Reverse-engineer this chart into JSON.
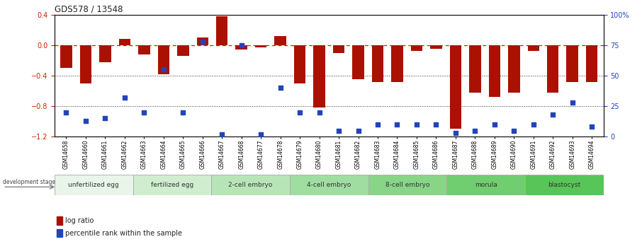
{
  "title": "GDS578 / 13548",
  "samples": [
    "GSM14658",
    "GSM14660",
    "GSM14661",
    "GSM14662",
    "GSM14663",
    "GSM14664",
    "GSM14665",
    "GSM14666",
    "GSM14667",
    "GSM14668",
    "GSM14677",
    "GSM14678",
    "GSM14679",
    "GSM14680",
    "GSM14681",
    "GSM14682",
    "GSM14683",
    "GSM14684",
    "GSM14685",
    "GSM14686",
    "GSM14687",
    "GSM14688",
    "GSM14689",
    "GSM14690",
    "GSM14691",
    "GSM14692",
    "GSM14693",
    "GSM14694"
  ],
  "log_ratio": [
    -0.3,
    -0.5,
    -0.22,
    0.08,
    -0.12,
    -0.38,
    -0.14,
    0.1,
    0.38,
    -0.06,
    -0.03,
    0.12,
    -0.5,
    -0.82,
    -0.1,
    -0.45,
    -0.48,
    -0.48,
    -0.08,
    -0.05,
    -1.1,
    -0.62,
    -0.68,
    -0.62,
    -0.08,
    -0.62,
    -0.48,
    -0.48
  ],
  "percentile_rank": [
    20,
    13,
    15,
    32,
    20,
    55,
    20,
    78,
    2,
    75,
    2,
    40,
    20,
    20,
    5,
    5,
    10,
    10,
    10,
    10,
    3,
    5,
    10,
    5,
    10,
    18,
    28,
    8
  ],
  "stages": [
    {
      "label": "unfertilized egg",
      "start": 0,
      "end": 4,
      "color": "#e0f5e0"
    },
    {
      "label": "fertilized egg",
      "start": 4,
      "end": 8,
      "color": "#c8edc8"
    },
    {
      "label": "2-cell embryo",
      "start": 8,
      "end": 12,
      "color": "#b0e5b0"
    },
    {
      "label": "4-cell embryo",
      "start": 12,
      "end": 16,
      "color": "#98dd98"
    },
    {
      "label": "8-cell embryo",
      "start": 16,
      "end": 20,
      "color": "#80d580"
    },
    {
      "label": "morula",
      "start": 20,
      "end": 24,
      "color": "#68cd68"
    },
    {
      "label": "blastocyst",
      "start": 24,
      "end": 28,
      "color": "#50c550"
    }
  ],
  "bar_color": "#aa1100",
  "dot_color": "#2244bb",
  "ylim_left": [
    -1.2,
    0.4
  ],
  "ylim_right": [
    0,
    100
  ],
  "yticks_left": [
    -1.2,
    -0.8,
    -0.4,
    0.0,
    0.4
  ],
  "yticks_right": [
    0,
    25,
    50,
    75,
    100
  ],
  "hline_color": "#cc2200",
  "dotted_color": "#333333",
  "bg_color": "#ffffff",
  "stage_label_color": "#333333",
  "left_axis_color": "#cc2200",
  "right_axis_color": "#2244bb"
}
